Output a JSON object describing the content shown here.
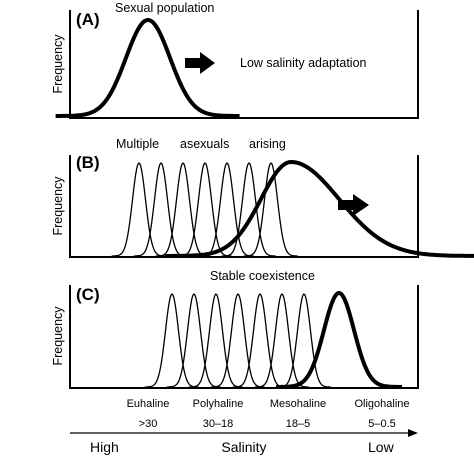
{
  "colors": {
    "line": "#000000",
    "background": "#ffffff"
  },
  "panels": [
    {
      "letter": "(A)",
      "ylabel": "Frequency",
      "annotations": [
        "Sexual population",
        "Low salinity adaptation"
      ],
      "arrow": "right-arrow"
    },
    {
      "letter": "(B)",
      "ylabel": "Frequency",
      "annotations": [
        "Multiple",
        "asexuals",
        "arising"
      ],
      "arrow": "right-arrow"
    },
    {
      "letter": "(C)",
      "ylabel": "Frequency",
      "annotations": [
        "Stable coexistence"
      ]
    }
  ],
  "zones": [
    {
      "name": "Euhaline",
      "range": ">30"
    },
    {
      "name": "Polyhaline",
      "range": "30–18"
    },
    {
      "name": "Mesohaline",
      "range": "18–5"
    },
    {
      "name": "Oligohaline",
      "range": "5–0.5"
    }
  ],
  "salinity_axis": {
    "left": "High",
    "center": "Salinity",
    "right": "Low"
  }
}
